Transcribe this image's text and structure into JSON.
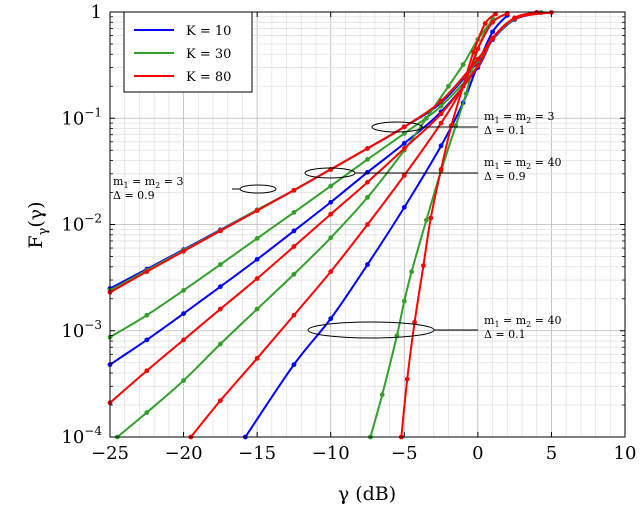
{
  "chart_data": {
    "type": "line",
    "xlabel": "γ (dB)",
    "ylabel": "F",
    "ylabel_sub": "γ",
    "ylabel_arg": "(γ)",
    "xlim": [
      -25,
      10
    ],
    "ylim": [
      0.0001,
      1
    ],
    "yscale": "log",
    "grid": true,
    "legend_position": "top-left",
    "x_ticks": [
      {
        "v": -25,
        "label": "−25"
      },
      {
        "v": -20,
        "label": "−20"
      },
      {
        "v": -15,
        "label": "−15"
      },
      {
        "v": -10,
        "label": "−10"
      },
      {
        "v": -5,
        "label": "−5"
      },
      {
        "v": 0,
        "label": "0"
      },
      {
        "v": 5,
        "label": "5"
      },
      {
        "v": 10,
        "label": "10"
      }
    ],
    "y_ticks": [
      {
        "v": 1,
        "base": "1",
        "exp": ""
      },
      {
        "v": 0.1,
        "base": "10",
        "exp": "−1"
      },
      {
        "v": 0.01,
        "base": "10",
        "exp": "−2"
      },
      {
        "v": 0.001,
        "base": "10",
        "exp": "−3"
      },
      {
        "v": 0.0001,
        "base": "10",
        "exp": "−4"
      }
    ],
    "series": [
      {
        "name": "K = 10",
        "key": "K",
        "val": "10",
        "color": "#0000ff",
        "curves": [
          {
            "x": [
              -25,
              -22.5,
              -20,
              -17.5,
              -15,
              -12.5,
              -10,
              -7.5,
              -5,
              -2.5,
              0,
              1,
              2.5,
              4.3
            ],
            "y": [
              0.0025,
              0.0038,
              0.0058,
              0.0089,
              0.0137,
              0.021,
              0.033,
              0.052,
              0.083,
              0.14,
              0.34,
              0.55,
              0.85,
              0.985
            ]
          },
          {
            "x": [
              -25,
              -22.5,
              -20,
              -17.5,
              -15,
              -12.5,
              -10,
              -7.5,
              -5,
              -2.5,
              0,
              1,
              2.5,
              4
            ],
            "y": [
              0.00048,
              0.00082,
              0.00145,
              0.0026,
              0.0047,
              0.0087,
              0.0162,
              0.031,
              0.058,
              0.115,
              0.3,
              0.55,
              0.87,
              0.99
            ]
          },
          {
            "x": [
              -15.8,
              -12.5,
              -10,
              -7.5,
              -5,
              -2.5,
              -1,
              0,
              1,
              2
            ],
            "y": [
              0.0001,
              0.00048,
              0.0013,
              0.0042,
              0.0145,
              0.055,
              0.14,
              0.32,
              0.65,
              0.93
            ]
          }
        ]
      },
      {
        "name": "K = 30",
        "key": "K",
        "val": "30",
        "color": "#33a02c",
        "curves": [
          {
            "x": [
              -25,
              -22.5,
              -20,
              -17.5,
              -15,
              -12.5,
              -10,
              -7.5,
              -5,
              -2.5,
              0,
              1,
              2.5,
              4.3
            ],
            "y": [
              0.0024,
              0.0037,
              0.0057,
              0.0088,
              0.0137,
              0.021,
              0.033,
              0.052,
              0.083,
              0.145,
              0.35,
              0.56,
              0.86,
              0.985
            ]
          },
          {
            "x": [
              -25,
              -22.5,
              -20,
              -17.5,
              -15,
              -12.5,
              -10,
              -7.5,
              -5,
              -2.5,
              0,
              1,
              2.5,
              4
            ],
            "y": [
              0.00087,
              0.0014,
              0.0024,
              0.0042,
              0.0074,
              0.013,
              0.023,
              0.041,
              0.072,
              0.13,
              0.31,
              0.56,
              0.88,
              0.99
            ]
          },
          {
            "x": [
              -24.5,
              -22.5,
              -20,
              -17.5,
              -15,
              -12.5,
              -10,
              -7.5,
              -5,
              -3.5,
              -2,
              -1,
              0,
              1,
              2
            ],
            "y": [
              0.0001,
              0.00017,
              0.00034,
              0.00075,
              0.0016,
              0.0034,
              0.0075,
              0.018,
              0.05,
              0.1,
              0.2,
              0.32,
              0.55,
              0.82,
              0.97
            ]
          },
          {
            "x": [
              -7.3,
              -6.5,
              -5.5,
              -5,
              -4.5,
              -3.5,
              -2.5,
              -1.5,
              -0.8,
              0,
              1
            ],
            "y": [
              0.0001,
              0.00025,
              0.0009,
              0.0019,
              0.0036,
              0.011,
              0.032,
              0.085,
              0.17,
              0.45,
              0.88
            ]
          }
        ]
      },
      {
        "name": "K = 80",
        "key": "K",
        "val": "80",
        "color": "#ff0000",
        "curves": [
          {
            "x": [
              -25,
              -22.5,
              -20,
              -17.5,
              -15,
              -12.5,
              -10,
              -7.5,
              -5,
              -2.5,
              0,
              1,
              2.5,
              5
            ],
            "y": [
              0.0023,
              0.0036,
              0.0056,
              0.0087,
              0.0135,
              0.021,
              0.033,
              0.052,
              0.083,
              0.145,
              0.36,
              0.57,
              0.87,
              0.99
            ]
          },
          {
            "x": [
              -25,
              -22.5,
              -20,
              -17.5,
              -15,
              -12.5,
              -10,
              -7.5,
              -5,
              -2.5,
              0,
              1,
              2.5,
              4
            ],
            "y": [
              0.00021,
              0.00042,
              0.00082,
              0.0016,
              0.0031,
              0.0062,
              0.0125,
              0.025,
              0.052,
              0.11,
              0.31,
              0.56,
              0.88,
              0.99
            ]
          },
          {
            "x": [
              -19.5,
              -17.5,
              -15,
              -12.5,
              -10,
              -7.5,
              -5,
              -2.5,
              -1,
              0,
              1,
              2
            ],
            "y": [
              0.0001,
              0.00022,
              0.00055,
              0.0014,
              0.0036,
              0.01,
              0.029,
              0.09,
              0.2,
              0.45,
              0.8,
              0.97
            ]
          },
          {
            "x": [
              -5.2,
              -4.8,
              -4.3,
              -3.7,
              -3.2,
              -2.5,
              -1.8,
              -1,
              -0.3,
              0.5,
              1.2
            ],
            "y": [
              0.0001,
              0.00035,
              0.0012,
              0.0041,
              0.0115,
              0.033,
              0.085,
              0.2,
              0.42,
              0.78,
              0.96
            ]
          }
        ]
      }
    ],
    "annotations": [
      {
        "line1": "m",
        "line1b": "= m",
        "line1c": "= 3",
        "line2": "Δ = 0.1"
      },
      {
        "line1": "m",
        "line1b": "= m",
        "line1c": "= 40",
        "line2": "Δ = 0.9"
      },
      {
        "line1": "m",
        "line1b": "= m",
        "line1c": "= 3",
        "line2": "Δ = 0.9"
      },
      {
        "line1": "m",
        "line1b": "= m",
        "line1c": "= 40",
        "line2": "Δ = 0.1"
      }
    ]
  }
}
